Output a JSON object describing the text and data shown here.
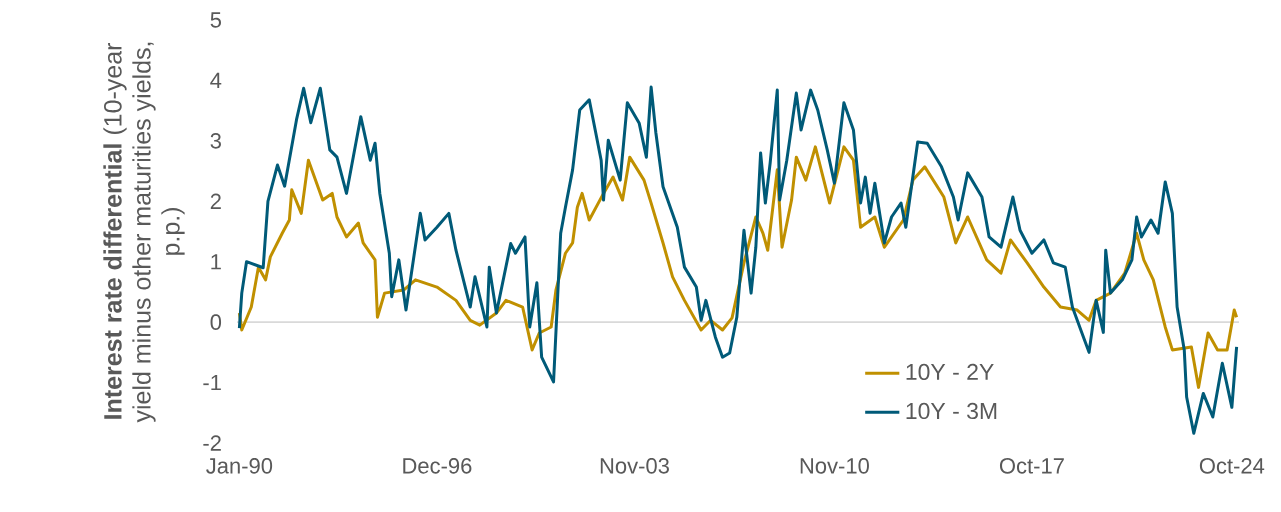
{
  "chart_data": {
    "type": "line",
    "ylabel": "**Interest rate differential** (10-year yield minus other maturities yields, p.p.)",
    "xlim": [
      "1989-12",
      "2025-01"
    ],
    "xticks": [
      {
        "value": "1990-01",
        "label": "Jan-90"
      },
      {
        "value": "1996-12",
        "label": "Dec-96"
      },
      {
        "value": "2003-11",
        "label": "Nov-03"
      },
      {
        "value": "2010-11",
        "label": "Nov-10"
      },
      {
        "value": "2017-10",
        "label": "Oct-17"
      },
      {
        "value": "2024-10",
        "label": "Oct-24"
      }
    ],
    "ylim": [
      -2,
      5
    ],
    "yticks": [
      -2,
      -1,
      0,
      1,
      2,
      3,
      4,
      5
    ],
    "legend": "bottom right",
    "ref_lines": [
      {
        "axis": "y",
        "value": 0,
        "color": "#d9d9d9"
      }
    ],
    "series": [
      {
        "name": "10Y - 2Y",
        "color": "#c09000",
        "x": [
          "1990-01",
          "1990-02",
          "1990-06",
          "1990-09",
          "1990-12",
          "1991-02",
          "1991-07",
          "1991-10",
          "1991-11",
          "1992-03",
          "1992-06",
          "1992-12",
          "1993-04",
          "1993-06",
          "1993-10",
          "1994-03",
          "1994-05",
          "1994-10",
          "1994-11",
          "1995-02",
          "1995-10",
          "1996-03",
          "1996-12",
          "1997-08",
          "1998-02",
          "1998-06",
          "1999-01",
          "1999-05",
          "1999-12",
          "2000-04",
          "2000-07",
          "2000-12",
          "2001-02",
          "2001-06",
          "2001-09",
          "2001-11",
          "2002-01",
          "2002-04",
          "2002-10",
          "2003-02",
          "2003-06",
          "2003-09",
          "2004-03",
          "2004-06",
          "2004-11",
          "2005-03",
          "2005-08",
          "2006-03",
          "2006-07",
          "2006-12",
          "2007-04",
          "2007-09",
          "2008-02",
          "2008-05",
          "2008-07",
          "2008-11",
          "2009-01",
          "2009-05",
          "2009-07",
          "2009-11",
          "2010-03",
          "2010-09",
          "2011-03",
          "2011-07",
          "2011-10",
          "2012-04",
          "2012-08",
          "2013-04",
          "2013-08",
          "2014-01",
          "2014-09",
          "2015-02",
          "2015-07",
          "2016-03",
          "2016-09",
          "2017-01",
          "2017-08",
          "2018-03",
          "2018-10",
          "2019-05",
          "2019-10",
          "2020-01",
          "2020-07",
          "2021-01",
          "2021-06",
          "2021-09",
          "2022-01",
          "2022-06",
          "2022-09",
          "2023-05",
          "2023-08",
          "2023-12",
          "2024-04",
          "2024-08",
          "2024-11",
          "2024-12"
        ],
        "values": [
          0.15,
          -0.13,
          0.25,
          0.91,
          0.7,
          1.08,
          1.47,
          1.69,
          2.19,
          1.8,
          2.68,
          2.02,
          2.13,
          1.74,
          1.41,
          1.64,
          1.31,
          1.03,
          0.08,
          0.48,
          0.53,
          0.7,
          0.58,
          0.36,
          0.03,
          -0.05,
          0.15,
          0.36,
          0.25,
          -0.46,
          -0.18,
          -0.08,
          0.53,
          1.14,
          1.31,
          1.9,
          2.13,
          1.69,
          2.13,
          2.4,
          2.02,
          2.73,
          2.35,
          1.97,
          1.31,
          0.75,
          0.36,
          -0.13,
          0.03,
          -0.13,
          0.07,
          0.98,
          1.74,
          1.47,
          1.19,
          2.52,
          1.24,
          2.02,
          2.73,
          2.35,
          2.9,
          1.97,
          2.9,
          2.68,
          1.57,
          1.74,
          1.24,
          1.69,
          2.35,
          2.57,
          2.07,
          1.31,
          1.74,
          1.03,
          0.81,
          1.36,
          0.98,
          0.58,
          0.25,
          0.2,
          0.03,
          0.36,
          0.48,
          0.81,
          1.47,
          1.03,
          0.7,
          -0.08,
          -0.46,
          -0.41,
          -1.08,
          -0.18,
          -0.46,
          -0.46,
          0.2,
          0.08
        ]
      },
      {
        "name": "10Y - 3M",
        "color": "#005a78",
        "x": [
          "1990-01",
          "1990-02",
          "1990-04",
          "1990-11",
          "1991-01",
          "1991-05",
          "1991-08",
          "1992-01",
          "1992-04",
          "1992-07",
          "1992-11",
          "1993-03",
          "1993-06",
          "1993-10",
          "1994-04",
          "1994-08",
          "1994-10",
          "1994-12",
          "1995-04",
          "1995-05",
          "1995-08",
          "1995-11",
          "1996-05",
          "1996-07",
          "1996-12",
          "1997-05",
          "1997-08",
          "1998-02",
          "1998-04",
          "1998-09",
          "1998-10",
          "1999-01",
          "1999-07",
          "1999-09",
          "2000-01",
          "2000-03",
          "2000-06",
          "2000-08",
          "2001-01",
          "2001-04",
          "2001-06",
          "2001-09",
          "2001-12",
          "2002-04",
          "2002-09",
          "2002-10",
          "2002-12",
          "2003-05",
          "2003-08",
          "2004-01",
          "2004-04",
          "2004-06",
          "2004-08",
          "2004-11",
          "2005-05",
          "2005-08",
          "2006-01",
          "2006-03",
          "2006-05",
          "2006-09",
          "2006-12",
          "2007-03",
          "2007-06",
          "2007-09",
          "2007-12",
          "2008-02",
          "2008-04",
          "2008-06",
          "2008-08",
          "2008-11",
          "2008-12",
          "2009-03",
          "2009-07",
          "2009-09",
          "2010-01",
          "2010-04",
          "2010-08",
          "2010-11",
          "2011-03",
          "2011-07",
          "2011-10",
          "2011-12",
          "2012-02",
          "2012-04",
          "2012-08",
          "2012-11",
          "2013-03",
          "2013-05",
          "2013-10",
          "2014-02",
          "2014-08",
          "2015-01",
          "2015-03",
          "2015-07",
          "2016-01",
          "2016-04",
          "2016-09",
          "2017-02",
          "2017-05",
          "2017-10",
          "2018-03",
          "2018-07",
          "2018-12",
          "2019-03",
          "2019-07",
          "2019-10",
          "2020-01",
          "2020-04",
          "2020-05",
          "2020-07",
          "2020-12",
          "2021-04",
          "2021-06",
          "2021-08",
          "2021-12",
          "2022-03",
          "2022-06",
          "2022-09",
          "2022-11",
          "2023-02",
          "2023-03",
          "2023-06",
          "2023-10",
          "2024-02",
          "2024-06",
          "2024-10",
          "2024-12"
        ],
        "values": [
          -0.1,
          0.48,
          1.0,
          0.9,
          2.0,
          2.6,
          2.25,
          3.35,
          3.87,
          3.3,
          3.87,
          2.85,
          2.73,
          2.13,
          3.4,
          2.68,
          2.96,
          2.13,
          1.14,
          0.42,
          1.03,
          0.2,
          1.8,
          1.36,
          1.57,
          1.8,
          1.19,
          0.25,
          0.75,
          -0.08,
          0.91,
          0.15,
          1.3,
          1.14,
          1.41,
          -0.08,
          0.65,
          -0.58,
          -0.99,
          1.47,
          1.9,
          2.52,
          3.51,
          3.68,
          2.68,
          2.02,
          3.01,
          2.35,
          3.63,
          3.29,
          2.73,
          3.89,
          3.13,
          2.24,
          1.57,
          0.91,
          0.58,
          0.03,
          0.36,
          -0.25,
          -0.58,
          -0.51,
          0.08,
          1.52,
          0.48,
          1.24,
          2.8,
          1.97,
          2.63,
          3.84,
          2.02,
          2.68,
          3.79,
          3.18,
          3.84,
          3.51,
          2.85,
          2.3,
          3.63,
          3.18,
          1.97,
          2.4,
          1.8,
          2.3,
          1.31,
          1.74,
          1.97,
          1.57,
          2.98,
          2.96,
          2.57,
          2.07,
          1.69,
          2.47,
          2.07,
          1.41,
          1.24,
          2.07,
          1.52,
          1.14,
          1.36,
          0.98,
          0.91,
          0.25,
          -0.18,
          -0.5,
          0.36,
          -0.17,
          1.19,
          0.48,
          0.7,
          1.03,
          1.74,
          1.41,
          1.69,
          1.47,
          2.32,
          1.8,
          0.25,
          -0.46,
          -1.24,
          -1.84,
          -1.18,
          -1.57,
          -0.68,
          -1.41,
          -0.41
        ]
      }
    ]
  }
}
